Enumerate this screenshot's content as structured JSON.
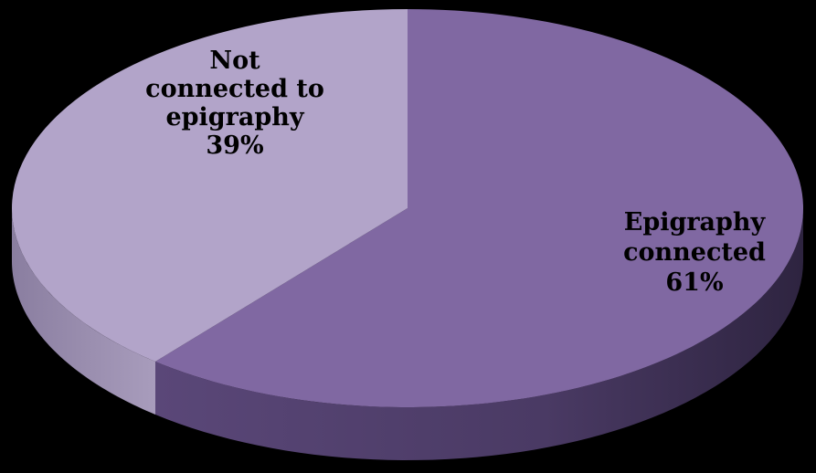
{
  "chart_data": {
    "type": "pie",
    "style": "3d",
    "title": "",
    "slices": [
      {
        "label_lines": [
          "Epigraphy",
          "connected",
          "61%"
        ],
        "value": 61,
        "color": "#8068a2"
      },
      {
        "label_lines": [
          "Not",
          "connected to",
          "epigraphy",
          "39%"
        ],
        "value": 39,
        "color": "#b2a4c9"
      }
    ],
    "start_angle": "top, clockwise",
    "legend": "none"
  }
}
